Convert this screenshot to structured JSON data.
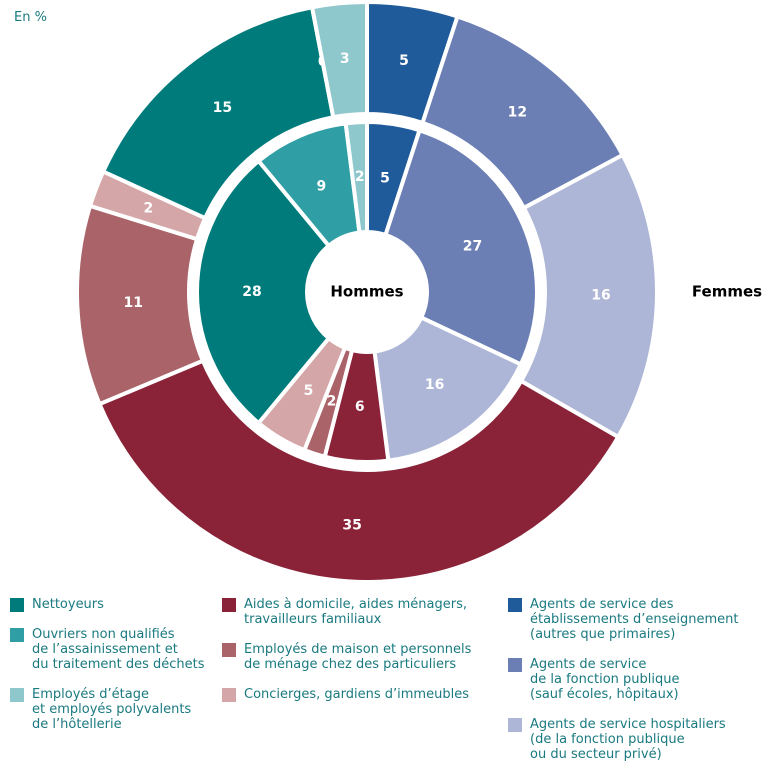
{
  "chart_data": {
    "type": "donut",
    "subtitle": "En %",
    "categories": [
      "Agents de service des\nétablissements d’enseignement\n(autres que primaires)",
      "Agents de service\nde la fonction publique\n(sauf écoles, hôpitaux)",
      "Agents de service hospitaliers\n(de la fonction publique\nou du secteur privé)",
      "Aides à domicile, aides ménagers,\ntravailleurs familiaux",
      "Employés de maison et personnels\nde ménage chez des particuliers",
      "Concierges, gardiens d’immeubles",
      "Nettoyeurs",
      "Ouvriers non qualifiés\nde l’assainissement et\ndu traitement des déchets",
      "Employés d’étage\net employés polyvalents\nde l’hôtellerie"
    ],
    "colors": [
      "#1f5a9a",
      "#6c7fb5",
      "#aeb6d7",
      "#8a2238",
      "#aa6469",
      "#d4a6a7",
      "#007b7b",
      "#2f9fa5",
      "#8ec7cc"
    ],
    "series": [
      {
        "name": "Hommes",
        "values": [
          5,
          27,
          16,
          6,
          2,
          5,
          28,
          9,
          2
        ]
      },
      {
        "name": "Femmes",
        "values": [
          5,
          12,
          16,
          35,
          11,
          2,
          15,
          0,
          3
        ]
      }
    ]
  }
}
